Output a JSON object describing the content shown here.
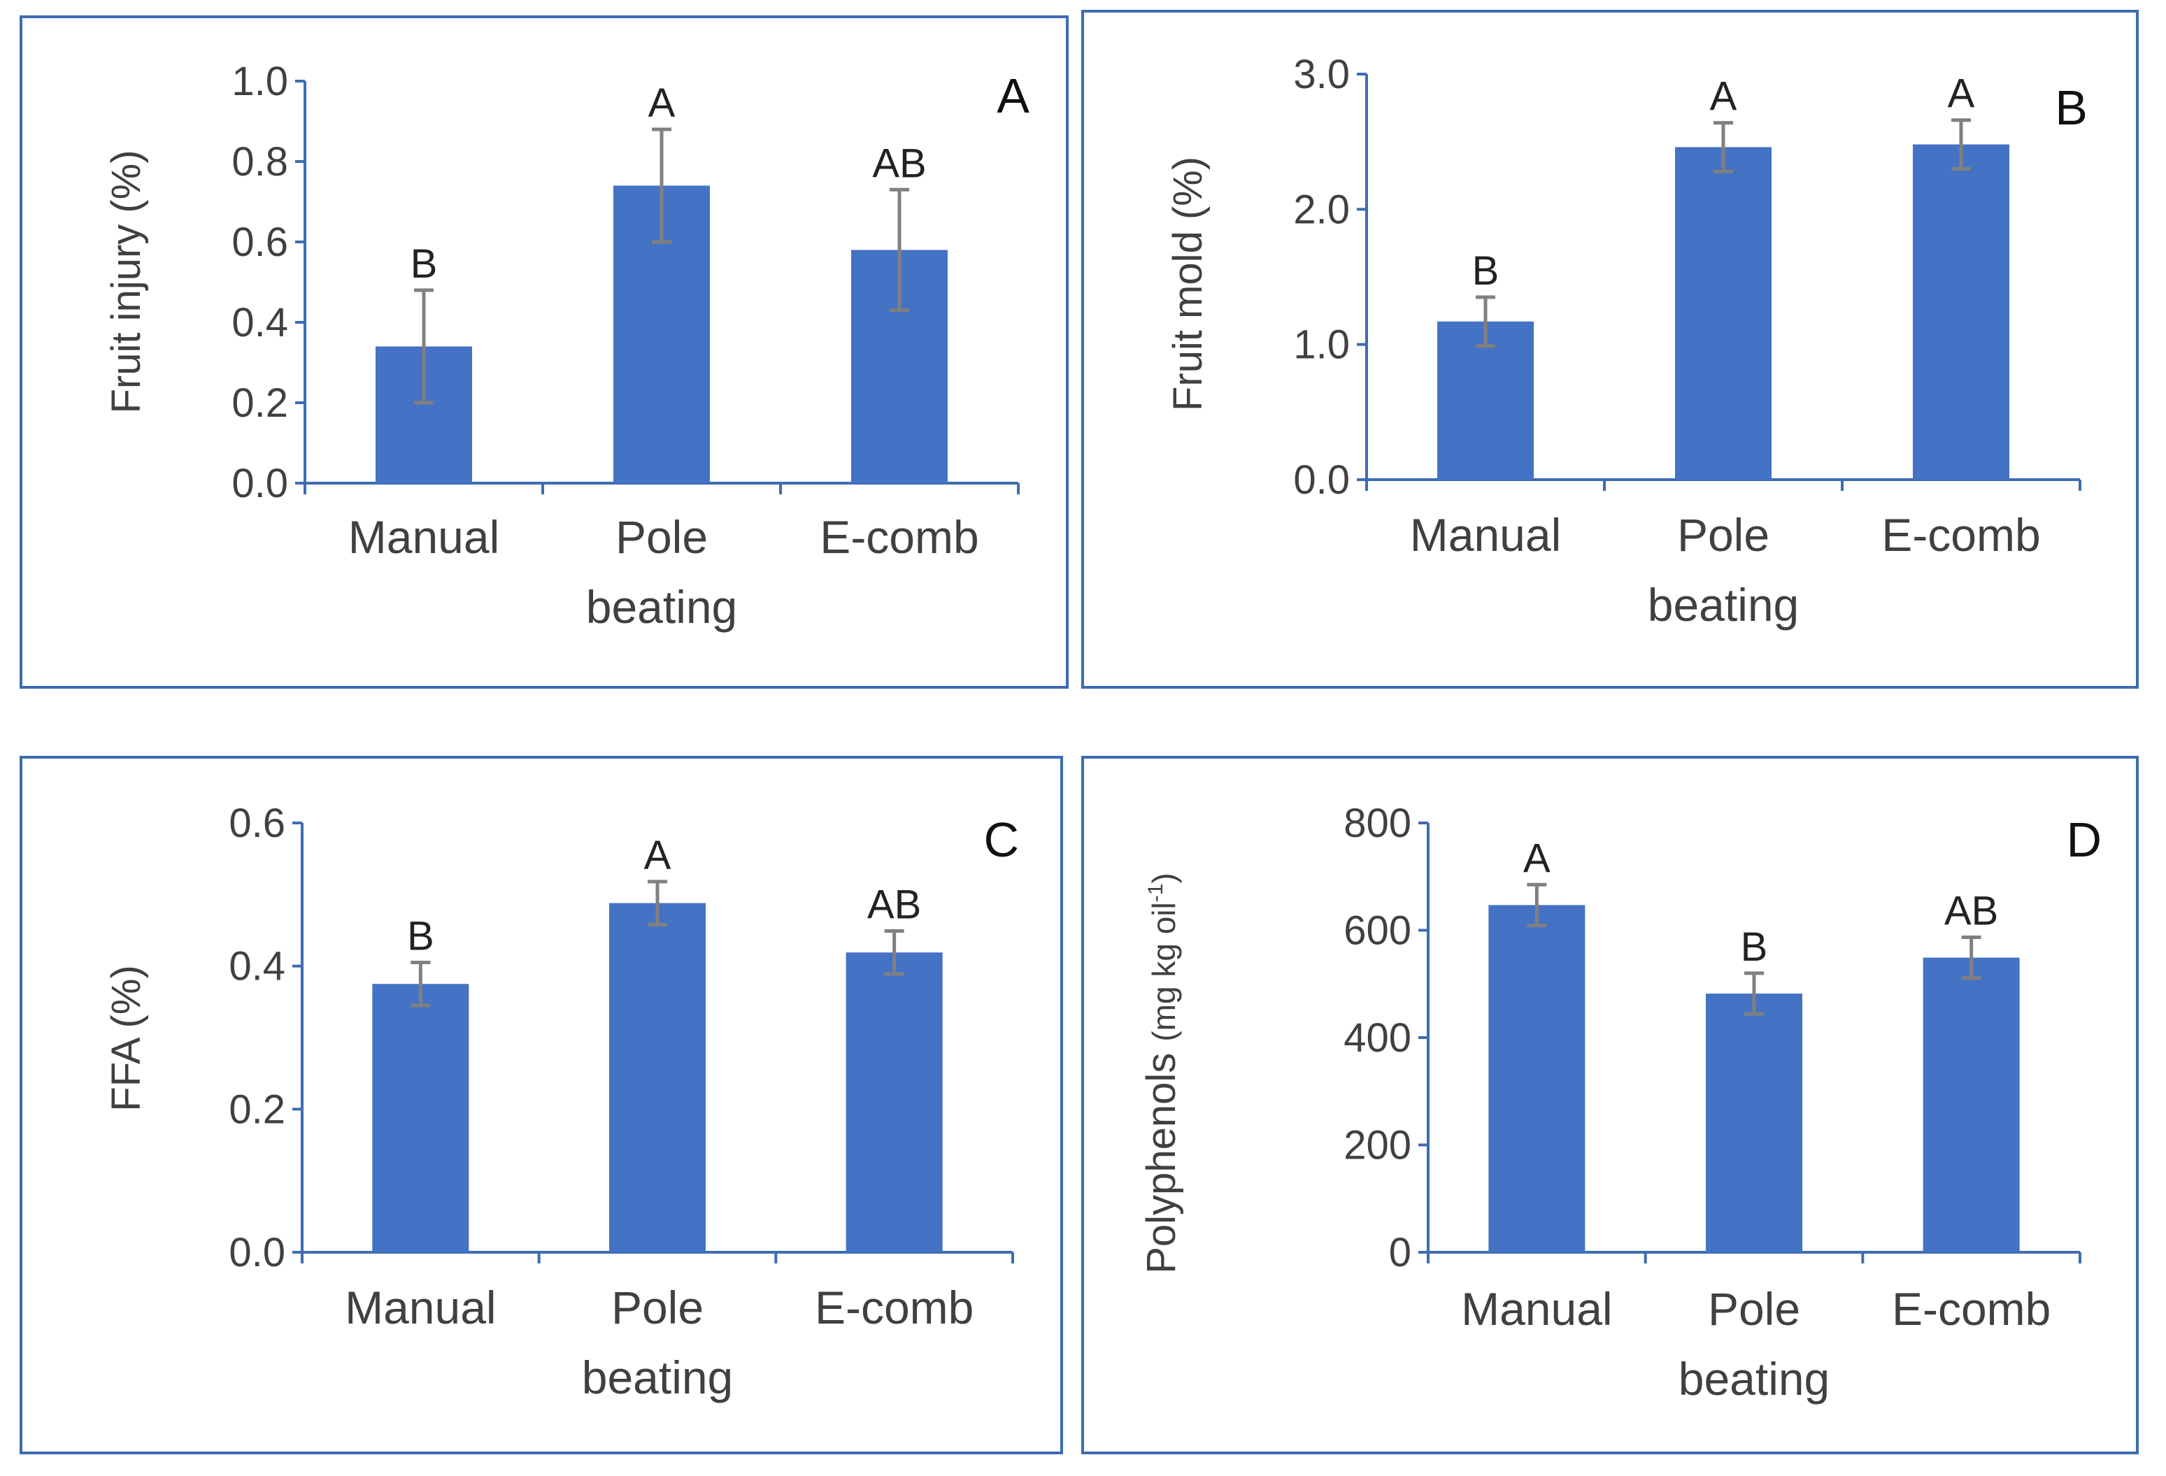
{
  "colors": {
    "bar": "#4472c4",
    "axis": "#3d6cb2",
    "frame": "#3d6cb2",
    "error_bar": "#808080",
    "text": "#404040"
  },
  "chart_data": [
    {
      "type": "bar",
      "panel_label": "A",
      "ylabel": "Fruit injury (%)",
      "ylim": [
        0,
        1.0
      ],
      "yticks": [
        "0.0",
        "0.2",
        "0.4",
        "0.6",
        "0.8",
        "1.0"
      ],
      "categories": [
        "Manual",
        "Pole beating",
        "E-comb"
      ],
      "category_lines": [
        [
          "Manual"
        ],
        [
          "Pole",
          "beating"
        ],
        [
          "E-comb"
        ]
      ],
      "values": [
        0.34,
        0.74,
        0.58
      ],
      "errors": [
        0.14,
        0.14,
        0.15
      ],
      "significance": [
        "B",
        "A",
        "AB"
      ]
    },
    {
      "type": "bar",
      "panel_label": "B",
      "ylabel": "Fruit mold (%)",
      "ylim": [
        0,
        3.0
      ],
      "yticks": [
        "0.0",
        "1.0",
        "2.0",
        "3.0"
      ],
      "categories": [
        "Manual",
        "Pole beating",
        "E-comb"
      ],
      "category_lines": [
        [
          "Manual"
        ],
        [
          "Pole",
          "beating"
        ],
        [
          "E-comb"
        ]
      ],
      "values": [
        1.17,
        2.46,
        2.48
      ],
      "errors": [
        0.18,
        0.18,
        0.18
      ],
      "significance": [
        "B",
        "A",
        "A"
      ]
    },
    {
      "type": "bar",
      "panel_label": "C",
      "ylabel": "FFA (%)",
      "ylim": [
        0,
        0.6
      ],
      "yticks": [
        "0.0",
        "0.2",
        "0.4",
        "0.6"
      ],
      "categories": [
        "Manual",
        "Pole beating",
        "E-comb"
      ],
      "category_lines": [
        [
          "Manual"
        ],
        [
          "Pole",
          "beating"
        ],
        [
          "E-comb"
        ]
      ],
      "values": [
        0.375,
        0.488,
        0.419
      ],
      "errors": [
        0.03,
        0.03,
        0.03
      ],
      "significance": [
        "B",
        "A",
        "AB"
      ]
    },
    {
      "type": "bar",
      "panel_label": "D",
      "ylabel": "Polyphenols (mg kg oil⁻¹)",
      "ylabel_main": "Polyphenols",
      "ylabel_unit": "(mg kg oil",
      "ylabel_sup": "-1",
      "ylabel_close": ")",
      "ylim": [
        0,
        800
      ],
      "yticks": [
        "0",
        "200",
        "400",
        "600",
        "800"
      ],
      "categories": [
        "Manual",
        "Pole beating",
        "E-comb"
      ],
      "category_lines": [
        [
          "Manual"
        ],
        [
          "Pole",
          "beating"
        ],
        [
          "E-comb"
        ]
      ],
      "values": [
        647,
        482,
        549
      ],
      "errors": [
        38,
        38,
        38
      ],
      "significance": [
        "A",
        "B",
        "AB"
      ]
    }
  ]
}
